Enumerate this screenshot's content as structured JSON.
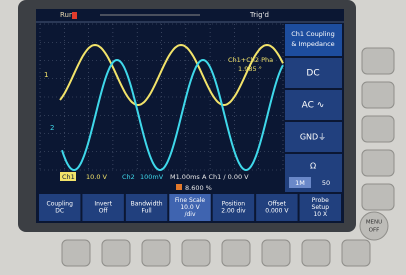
{
  "status": {
    "run": "Run",
    "trigger": "Trig'd"
  },
  "side_menu": {
    "title": [
      "Ch1 Coupling",
      "& Impedance"
    ],
    "items": [
      "DC",
      "AC ∿",
      "GND⏚"
    ],
    "impedance": {
      "label": "Ω",
      "options": [
        "1M",
        "50"
      ]
    }
  },
  "measurement": {
    "label": "Ch1+Ch2 Pha",
    "value": "1.985 °"
  },
  "markers": [
    "1",
    "2"
  ],
  "readout": {
    "ch1": "Ch1",
    "ch1_scale": "10.0 V",
    "ch2": "Ch2",
    "ch2_scale": "100mV",
    "timebase": "M1.00ms",
    "trigger": "A Ch1 / 0.00 V",
    "percent": "8.600 %"
  },
  "bottom_menu": [
    [
      "Coupling",
      "DC"
    ],
    [
      "Invert",
      "Off"
    ],
    [
      "Bandwidth",
      "Full"
    ],
    [
      "Fine Scale",
      "10.0 V",
      "/div"
    ],
    [
      "Position",
      "2.00 div"
    ],
    [
      "Offset",
      "0.000 V"
    ],
    [
      "Probe",
      "Setup",
      "10 X"
    ]
  ],
  "menu_off": [
    "MENU",
    "OFF"
  ]
}
